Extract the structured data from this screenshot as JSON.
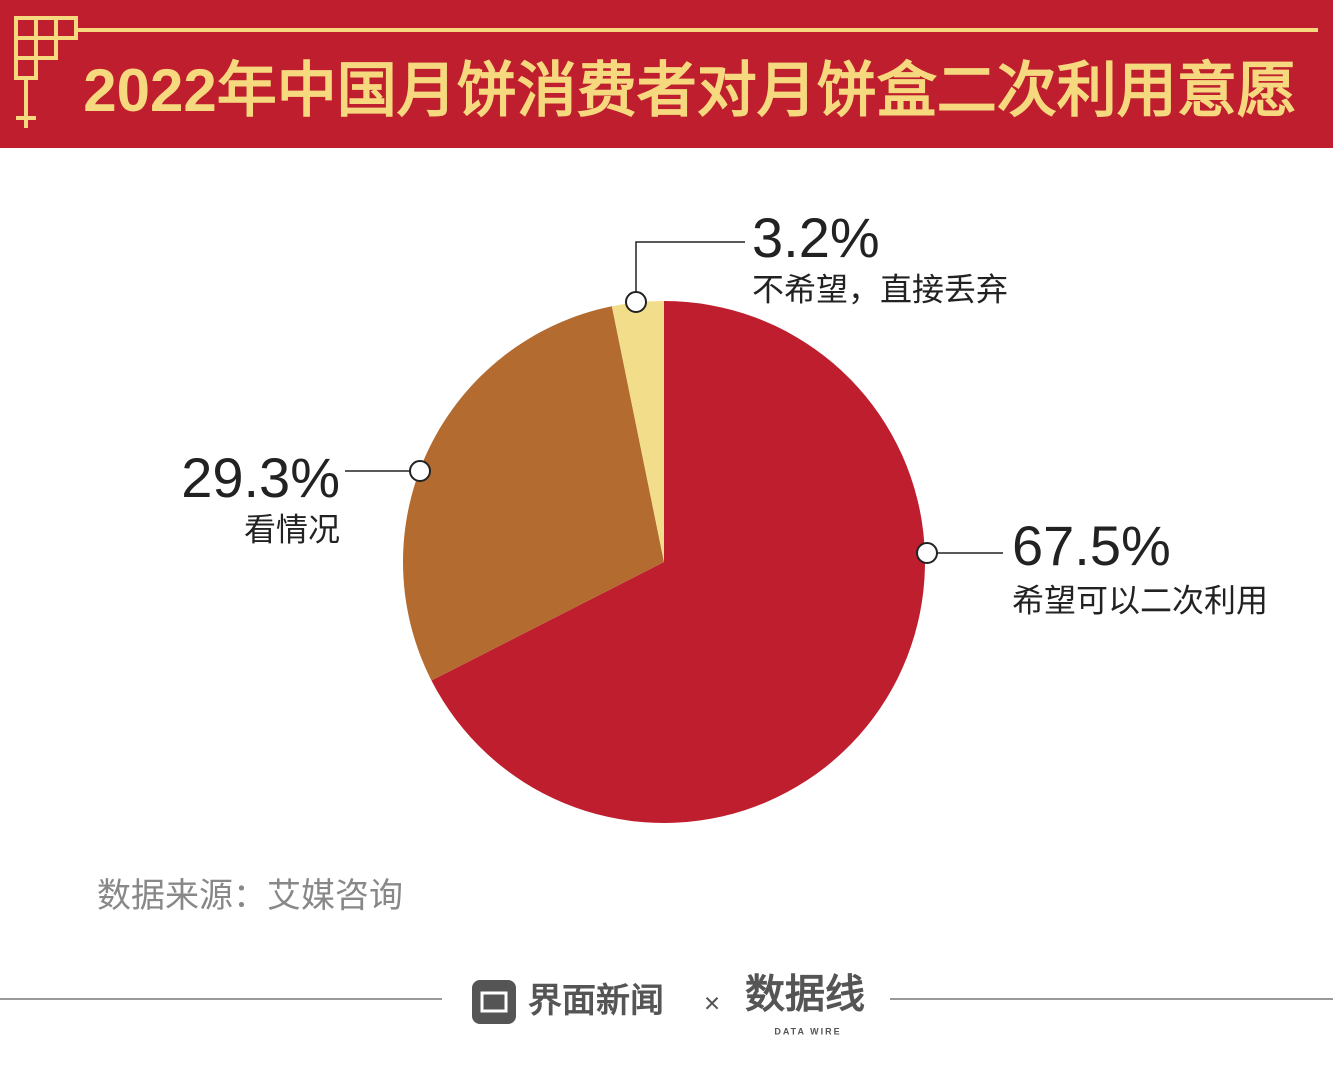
{
  "chart_data": {
    "type": "pie",
    "title": "2022年中国月饼消费者对月饼盒二次利用意愿",
    "categories": [
      "希望可以二次利用",
      "看情况",
      "不希望，直接丢弃"
    ],
    "values": [
      67.5,
      29.3,
      3.2
    ],
    "value_labels": [
      "67.5%",
      "29.3%",
      "3.2%"
    ],
    "colors": [
      "#be1e2d",
      "#b36b30",
      "#f2de8a"
    ],
    "source": "数据来源：艾媒咨询"
  },
  "footer": {
    "brand": "界面新闻",
    "separator": "×",
    "partner": "数据线",
    "partner_sub": "DATA WIRE"
  }
}
